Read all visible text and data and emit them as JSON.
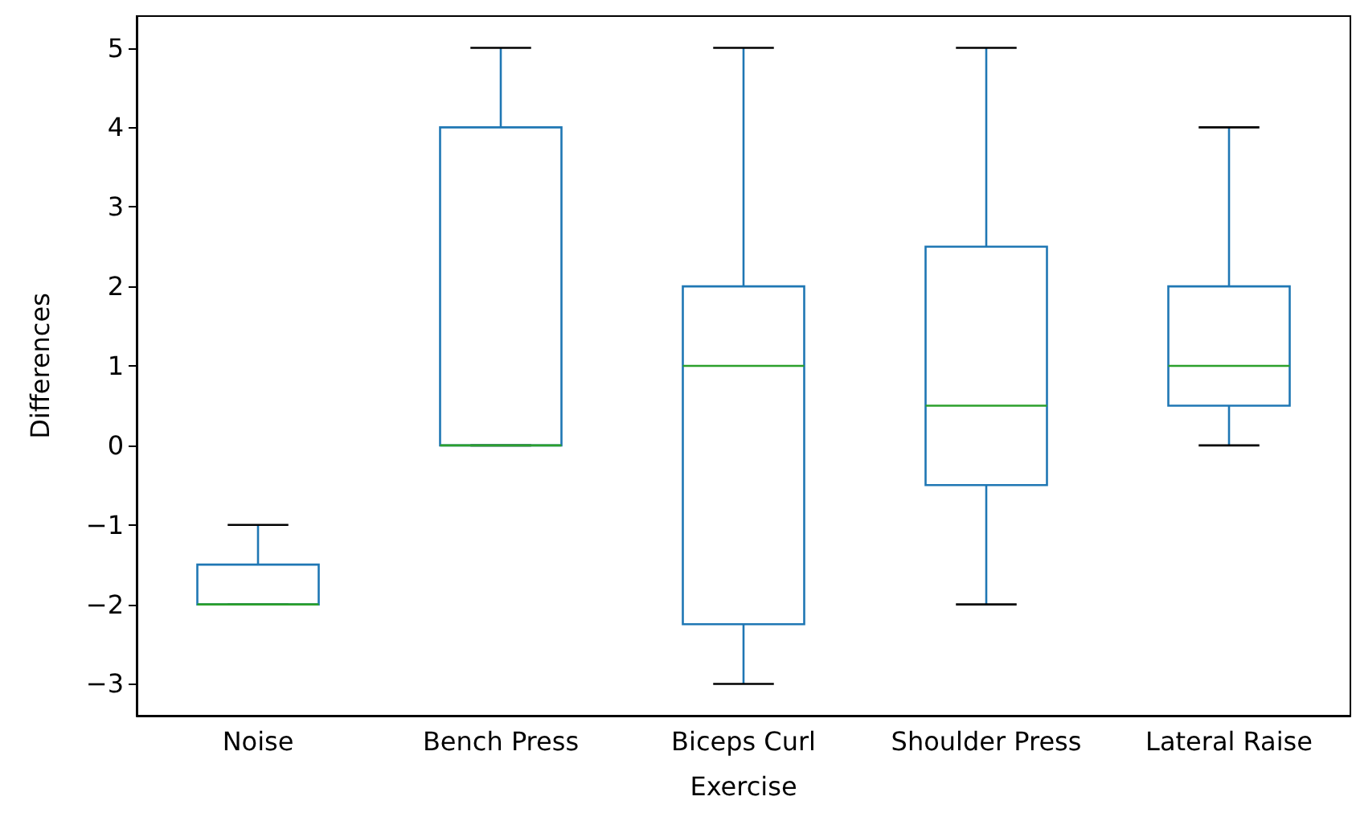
{
  "chart_data": {
    "type": "box",
    "xlabel": "Exercise",
    "ylabel": "Differences",
    "categories": [
      "Noise",
      "Bench Press",
      "Biceps Curl",
      "Shoulder Press",
      "Lateral Raise"
    ],
    "color": "#1f77b4",
    "boxes": [
      {
        "low": -2,
        "q1": -2,
        "median": -2,
        "q3": -1.5,
        "high": -1
      },
      {
        "low": 0,
        "q1": 0,
        "median": 0,
        "q3": 4,
        "high": 5
      },
      {
        "low": -3,
        "q1": -2.25,
        "median": 1,
        "q3": 2,
        "high": 5
      },
      {
        "low": -2,
        "q1": -0.5,
        "median": 0.5,
        "q3": 2.5,
        "high": 5
      },
      {
        "low": 0,
        "q1": 0.5,
        "median": 1,
        "q3": 2,
        "high": 4
      }
    ],
    "ylim": [
      -3.4,
      5.4
    ],
    "yticks": [
      {
        "value": -3,
        "label": "−3"
      },
      {
        "value": -2,
        "label": "−2"
      },
      {
        "value": -1,
        "label": "−1"
      },
      0,
      1,
      2,
      3,
      4,
      5
    ]
  }
}
